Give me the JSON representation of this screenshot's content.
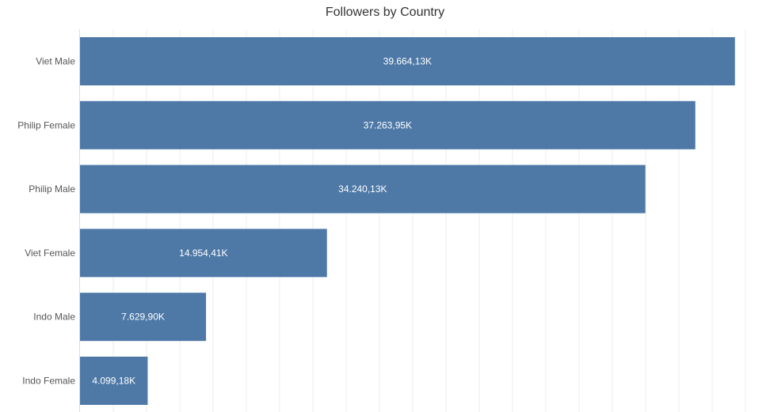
{
  "chart_data": {
    "type": "bar",
    "orientation": "horizontal",
    "title": "Followers by Country",
    "xlabel": "",
    "ylabel": "",
    "grid": true,
    "xlim": [
      0,
      40300
    ],
    "categories": [
      "Viet Male",
      "Philip Female",
      "Philip Male",
      "Viet Female",
      "Indo Male",
      "Indo Female"
    ],
    "values": [
      39664.13,
      37263.95,
      34240.13,
      14954.41,
      7629.9,
      4099.18
    ],
    "data_labels": [
      "39.664,13K",
      "37.263,95K",
      "34.240,13K",
      "14.954,41K",
      "7.629,90K",
      "4.099,18K"
    ],
    "color": "#4e79a7"
  }
}
